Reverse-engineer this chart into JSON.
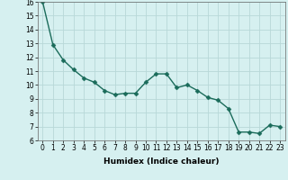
{
  "x": [
    0,
    1,
    2,
    3,
    4,
    5,
    6,
    7,
    8,
    9,
    10,
    11,
    12,
    13,
    14,
    15,
    16,
    17,
    18,
    19,
    20,
    21,
    22,
    23
  ],
  "y": [
    16.0,
    12.9,
    11.8,
    11.1,
    10.5,
    10.2,
    9.6,
    9.3,
    9.4,
    9.4,
    10.2,
    10.8,
    10.8,
    9.8,
    10.0,
    9.6,
    9.1,
    8.9,
    8.3,
    6.6,
    6.6,
    6.5,
    7.1,
    7.0
  ],
  "line_color": "#1a6b5a",
  "marker": "D",
  "marker_size": 2.5,
  "line_width": 1.0,
  "bg_color": "#d6f0f0",
  "grid_color": "#b8d8d8",
  "xlabel": "Humidex (Indice chaleur)",
  "xlim": [
    -0.5,
    23.5
  ],
  "ylim": [
    6,
    16
  ],
  "yticks": [
    6,
    7,
    8,
    9,
    10,
    11,
    12,
    13,
    14,
    15,
    16
  ],
  "xticks": [
    0,
    1,
    2,
    3,
    4,
    5,
    6,
    7,
    8,
    9,
    10,
    11,
    12,
    13,
    14,
    15,
    16,
    17,
    18,
    19,
    20,
    21,
    22,
    23
  ],
  "tick_fontsize": 5.5,
  "label_fontsize": 6.5
}
